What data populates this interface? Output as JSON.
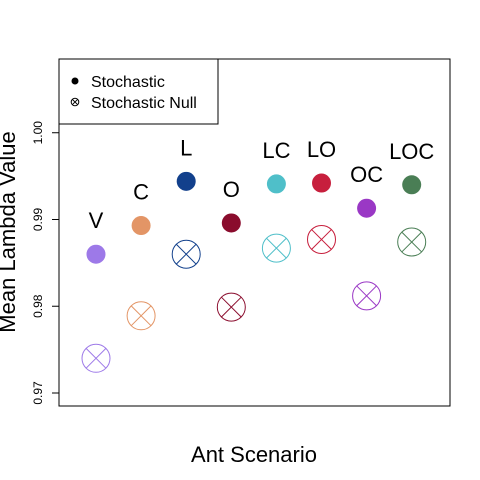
{
  "chart_data": {
    "type": "scatter",
    "xlabel": "Ant Scenario",
    "ylabel": "Mean Lambda Value",
    "ylim": [
      0.9685,
      1.0085
    ],
    "yticks": [
      0.97,
      0.98,
      0.99,
      1.0
    ],
    "ytick_labels": [
      "0.97",
      "0.98",
      "0.99",
      "1.00"
    ],
    "grid": false,
    "legend": {
      "position": "top-left",
      "entries": [
        {
          "label": "Stochastic",
          "marker": "filled-circle"
        },
        {
          "label": "Stochastic Null",
          "marker": "circle-x"
        }
      ]
    },
    "categories": [
      "V",
      "C",
      "L",
      "O",
      "LC",
      "LO",
      "OC",
      "LOC"
    ],
    "colors": [
      "#9d79e8",
      "#e39566",
      "#12408c",
      "#8a0c2d",
      "#4fbfc9",
      "#c71f3d",
      "#9a38c5",
      "#4a7e55"
    ],
    "series": [
      {
        "name": "Stochastic",
        "values": [
          0.986,
          0.9893,
          0.9944,
          0.9896,
          0.9941,
          0.9942,
          0.9913,
          0.994
        ]
      },
      {
        "name": "Stochastic Null",
        "values": [
          0.974,
          0.9789,
          0.986,
          0.9799,
          0.9867,
          0.9877,
          0.9812,
          0.9874
        ]
      }
    ]
  }
}
